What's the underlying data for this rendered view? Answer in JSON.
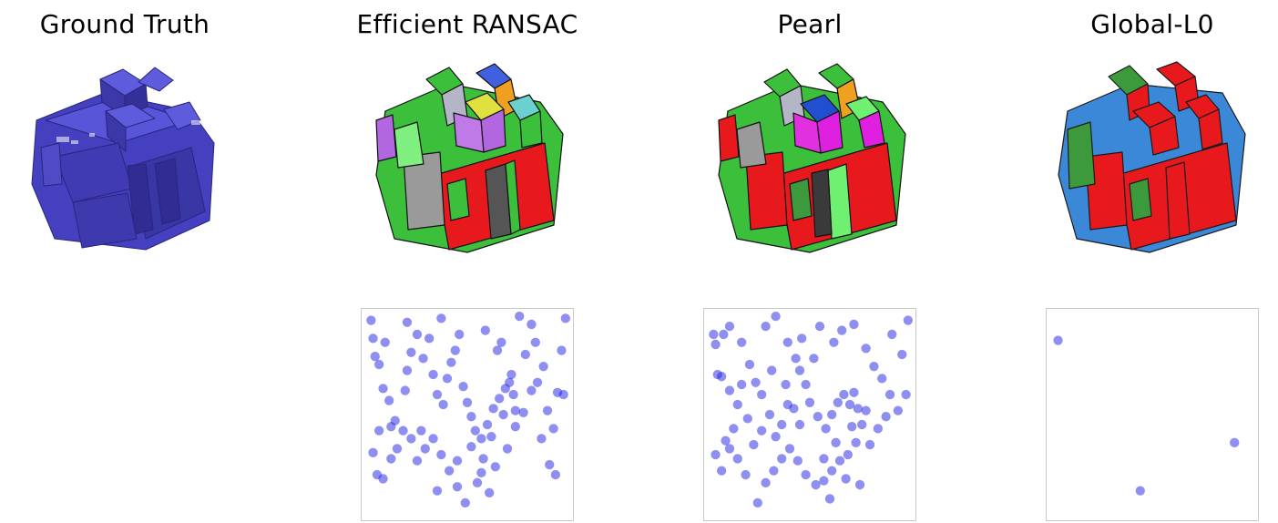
{
  "columns": [
    {
      "key": "ground_truth",
      "title": "Ground Truth",
      "palette": [
        "#3b36b8",
        "#4a45c8",
        "#2e2a9a",
        "#5a55d6"
      ]
    },
    {
      "key": "efficient_ransac",
      "title": "Efficient RANSAC",
      "palette": [
        "#e8191c",
        "#3cc03c",
        "#9a9a9a",
        "#b266e0",
        "#f0a020",
        "#6ad0d0",
        "#e0e040",
        "#4060e0"
      ]
    },
    {
      "key": "pearl",
      "title": "Pearl",
      "palette": [
        "#e8191c",
        "#3cc03c",
        "#e020e0",
        "#9a9a9a",
        "#70f070",
        "#2050d0",
        "#f0a020",
        "#8050d0"
      ]
    },
    {
      "key": "global_l0",
      "title": "Global-L0",
      "palette": [
        "#e8191c",
        "#3c9a3c",
        "#3c88d8",
        "#2060c0"
      ]
    }
  ],
  "chart_data": [
    {
      "type": "scatter",
      "panel": "efficient_ransac",
      "xlim": [
        0,
        1
      ],
      "ylim": [
        0,
        1
      ],
      "points": [
        [
          0.02,
          0.97
        ],
        [
          0.03,
          0.88
        ],
        [
          0.06,
          0.75
        ],
        [
          0.08,
          0.63
        ],
        [
          0.12,
          0.44
        ],
        [
          0.11,
          0.57
        ],
        [
          0.04,
          0.79
        ],
        [
          0.09,
          0.86
        ],
        [
          0.14,
          0.47
        ],
        [
          0.19,
          0.62
        ],
        [
          0.2,
          0.72
        ],
        [
          0.22,
          0.81
        ],
        [
          0.25,
          0.9
        ],
        [
          0.28,
          0.78
        ],
        [
          0.31,
          0.88
        ],
        [
          0.33,
          0.7
        ],
        [
          0.35,
          0.6
        ],
        [
          0.38,
          0.55
        ],
        [
          0.4,
          0.68
        ],
        [
          0.42,
          0.76
        ],
        [
          0.44,
          0.82
        ],
        [
          0.46,
          0.9
        ],
        [
          0.48,
          0.64
        ],
        [
          0.5,
          0.56
        ],
        [
          0.52,
          0.49
        ],
        [
          0.54,
          0.42
        ],
        [
          0.57,
          0.38
        ],
        [
          0.6,
          0.45
        ],
        [
          0.63,
          0.53
        ],
        [
          0.66,
          0.58
        ],
        [
          0.69,
          0.63
        ],
        [
          0.71,
          0.66
        ],
        [
          0.73,
          0.6
        ],
        [
          0.74,
          0.52
        ],
        [
          0.72,
          0.7
        ],
        [
          0.68,
          0.5
        ],
        [
          0.62,
          0.39
        ],
        [
          0.58,
          0.28
        ],
        [
          0.55,
          0.16
        ],
        [
          0.49,
          0.06
        ],
        [
          0.45,
          0.14
        ],
        [
          0.41,
          0.22
        ],
        [
          0.37,
          0.3
        ],
        [
          0.33,
          0.38
        ],
        [
          0.29,
          0.33
        ],
        [
          0.25,
          0.27
        ],
        [
          0.22,
          0.38
        ],
        [
          0.18,
          0.42
        ],
        [
          0.15,
          0.33
        ],
        [
          0.12,
          0.28
        ],
        [
          0.08,
          0.18
        ],
        [
          0.05,
          0.2
        ],
        [
          0.03,
          0.31
        ],
        [
          0.06,
          0.42
        ],
        [
          0.27,
          0.42
        ],
        [
          0.35,
          0.12
        ],
        [
          0.45,
          0.27
        ],
        [
          0.52,
          0.34
        ],
        [
          0.57,
          0.21
        ],
        [
          0.61,
          0.11
        ],
        [
          0.64,
          0.24
        ],
        [
          0.7,
          0.33
        ],
        [
          0.74,
          0.44
        ],
        [
          0.78,
          0.51
        ],
        [
          0.82,
          0.62
        ],
        [
          0.85,
          0.66
        ],
        [
          0.88,
          0.74
        ],
        [
          0.9,
          0.52
        ],
        [
          0.93,
          0.43
        ],
        [
          0.95,
          0.61
        ],
        [
          0.98,
          0.6
        ],
        [
          0.97,
          0.82
        ],
        [
          0.84,
          0.86
        ],
        [
          0.82,
          0.95
        ],
        [
          0.76,
          0.99
        ],
        [
          0.79,
          0.8
        ],
        [
          0.65,
          0.82
        ],
        [
          0.59,
          0.92
        ],
        [
          0.67,
          0.86
        ],
        [
          0.87,
          0.38
        ],
        [
          0.91,
          0.25
        ],
        [
          0.94,
          0.2
        ],
        [
          0.99,
          0.98
        ],
        [
          0.37,
          0.98
        ],
        [
          0.2,
          0.96
        ]
      ]
    },
    {
      "type": "scatter",
      "panel": "pearl",
      "xlim": [
        0,
        1
      ],
      "ylim": [
        0,
        1
      ],
      "points": [
        [
          0.02,
          0.9
        ],
        [
          0.03,
          0.85
        ],
        [
          0.06,
          0.69
        ],
        [
          0.1,
          0.62
        ],
        [
          0.14,
          0.55
        ],
        [
          0.12,
          0.43
        ],
        [
          0.08,
          0.37
        ],
        [
          0.04,
          0.7
        ],
        [
          0.07,
          0.9
        ],
        [
          0.1,
          0.94
        ],
        [
          0.16,
          0.86
        ],
        [
          0.2,
          0.75
        ],
        [
          0.23,
          0.66
        ],
        [
          0.26,
          0.6
        ],
        [
          0.3,
          0.5
        ],
        [
          0.33,
          0.39
        ],
        [
          0.36,
          0.45
        ],
        [
          0.31,
          0.72
        ],
        [
          0.33,
          0.99
        ],
        [
          0.28,
          0.94
        ],
        [
          0.39,
          0.86
        ],
        [
          0.43,
          0.78
        ],
        [
          0.45,
          0.72
        ],
        [
          0.48,
          0.65
        ],
        [
          0.5,
          0.56
        ],
        [
          0.54,
          0.49
        ],
        [
          0.58,
          0.43
        ],
        [
          0.61,
          0.5
        ],
        [
          0.64,
          0.56
        ],
        [
          0.67,
          0.6
        ],
        [
          0.7,
          0.55
        ],
        [
          0.72,
          0.61
        ],
        [
          0.74,
          0.53
        ],
        [
          0.76,
          0.45
        ],
        [
          0.73,
          0.36
        ],
        [
          0.69,
          0.3
        ],
        [
          0.65,
          0.27
        ],
        [
          0.61,
          0.22
        ],
        [
          0.57,
          0.17
        ],
        [
          0.53,
          0.15
        ],
        [
          0.48,
          0.2
        ],
        [
          0.44,
          0.27
        ],
        [
          0.4,
          0.33
        ],
        [
          0.36,
          0.28
        ],
        [
          0.32,
          0.22
        ],
        [
          0.28,
          0.16
        ],
        [
          0.24,
          0.06
        ],
        [
          0.18,
          0.2
        ],
        [
          0.14,
          0.28
        ],
        [
          0.1,
          0.33
        ],
        [
          0.06,
          0.22
        ],
        [
          0.03,
          0.3
        ],
        [
          0.22,
          0.35
        ],
        [
          0.26,
          0.42
        ],
        [
          0.38,
          0.65
        ],
        [
          0.46,
          0.88
        ],
        [
          0.52,
          0.78
        ],
        [
          0.55,
          0.94
        ],
        [
          0.62,
          0.86
        ],
        [
          0.66,
          0.92
        ],
        [
          0.72,
          0.95
        ],
        [
          0.78,
          0.83
        ],
        [
          0.82,
          0.74
        ],
        [
          0.86,
          0.68
        ],
        [
          0.9,
          0.6
        ],
        [
          0.94,
          0.52
        ],
        [
          0.98,
          0.6
        ],
        [
          0.96,
          0.8
        ],
        [
          0.91,
          0.9
        ],
        [
          0.99,
          0.97
        ],
        [
          0.88,
          0.49
        ],
        [
          0.84,
          0.43
        ],
        [
          0.8,
          0.35
        ],
        [
          0.75,
          0.15
        ],
        [
          0.68,
          0.18
        ],
        [
          0.6,
          0.08
        ],
        [
          0.57,
          0.28
        ],
        [
          0.63,
          0.36
        ],
        [
          0.71,
          0.44
        ],
        [
          0.78,
          0.52
        ],
        [
          0.19,
          0.48
        ],
        [
          0.16,
          0.65
        ],
        [
          0.42,
          0.53
        ],
        [
          0.45,
          0.45
        ],
        [
          0.39,
          0.55
        ]
      ]
    },
    {
      "type": "scatter",
      "panel": "global_l0",
      "xlim": [
        0,
        1
      ],
      "ylim": [
        0,
        1
      ],
      "points": [
        [
          0.03,
          0.87
        ],
        [
          0.91,
          0.36
        ],
        [
          0.44,
          0.12
        ]
      ]
    }
  ]
}
